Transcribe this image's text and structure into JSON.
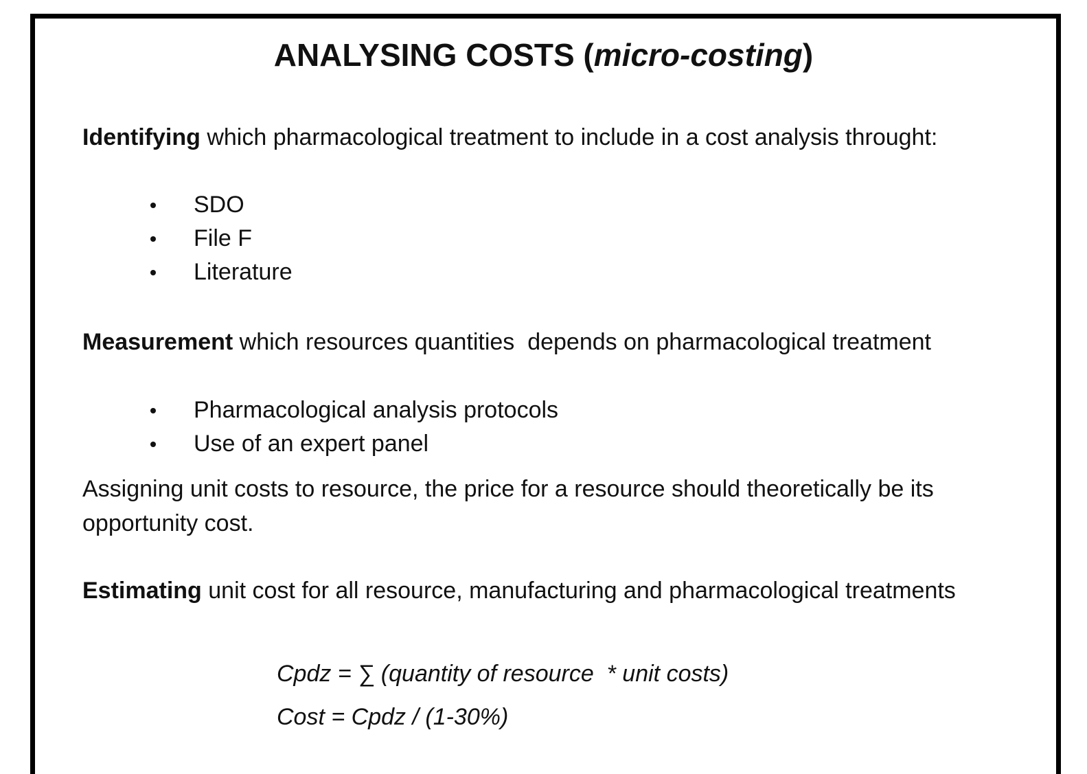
{
  "title": {
    "prefix": "ANALYSING COSTS (",
    "italic": "micro-costing",
    "suffix": ")"
  },
  "sections": [
    {
      "lead": "Identifying",
      "text": " which pharmacological treatment to include in a cost analysis throught:",
      "bullets": [
        "SDO",
        "File F",
        "Literature"
      ]
    },
    {
      "lead": "Measurement",
      "text": " which resources quantities  depends on pharmacological treatment",
      "bullets": [
        "Pharmacological analysis protocols",
        "Use of an expert panel"
      ]
    }
  ],
  "paragraph": [
    "Assigning unit costs to resource, the price for a resource should theoretically be its",
    "opportunity cost."
  ],
  "estimating": {
    "lead": "Estimating",
    "text": " unit cost for all resource, manufacturing and pharmacological treatments"
  },
  "formulas": [
    "Cpdz = ∑ (quantity of resource  * unit costs)",
    "Cost = Cpdz / (1-30%)"
  ]
}
